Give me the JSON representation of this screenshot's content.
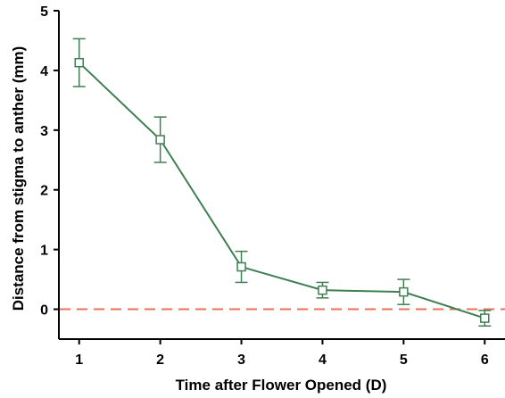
{
  "chart_data": {
    "type": "line",
    "title": "",
    "xlabel": "Time after Flower Opened (D)",
    "ylabel": "Distance from stigma to anther (mm)",
    "x": [
      1,
      2,
      3,
      4,
      5,
      6
    ],
    "xlim": [
      0.75,
      6.25
    ],
    "ylim": [
      -0.5,
      5
    ],
    "x_ticks": [
      1,
      2,
      3,
      4,
      5,
      6
    ],
    "y_ticks": [
      0,
      1,
      2,
      3,
      4,
      5
    ],
    "grid": false,
    "legend": "none",
    "series": [
      {
        "values": [
          4.13,
          2.84,
          0.71,
          0.32,
          0.29,
          -0.15
        ],
        "error": [
          0.4,
          0.38,
          0.26,
          0.13,
          0.21,
          0.13
        ],
        "marker": "open-square",
        "color": "#3f7f52"
      }
    ],
    "reference_line": {
      "y": 0,
      "style": "dashed",
      "color": "#e8735a"
    }
  }
}
